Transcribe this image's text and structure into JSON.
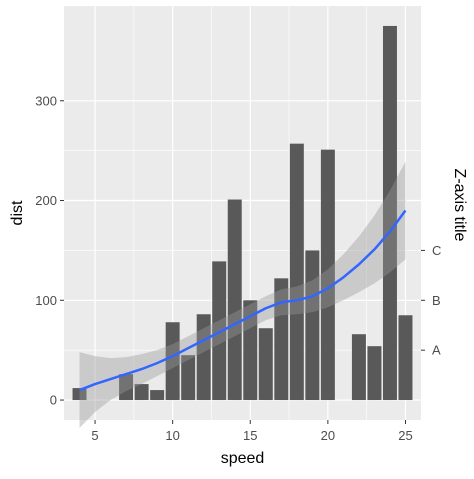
{
  "chart_data": {
    "type": "bar",
    "title": "",
    "xlabel": "speed",
    "ylabel": "dist",
    "zlabel": "Z-axis title",
    "xlim": [
      3,
      26
    ],
    "ylim": [
      -20,
      395
    ],
    "x_ticks": [
      5,
      10,
      15,
      20,
      25
    ],
    "y_ticks": [
      0,
      100,
      200,
      300
    ],
    "z_ticks": [
      {
        "label": "A",
        "value": 50
      },
      {
        "label": "B",
        "value": 100
      },
      {
        "label": "C",
        "value": 150
      }
    ],
    "grid": true,
    "bars": [
      {
        "x": 4,
        "y": 12
      },
      {
        "x": 7,
        "y": 26
      },
      {
        "x": 8,
        "y": 16
      },
      {
        "x": 9,
        "y": 10
      },
      {
        "x": 10,
        "y": 78
      },
      {
        "x": 11,
        "y": 45
      },
      {
        "x": 12,
        "y": 86
      },
      {
        "x": 13,
        "y": 139
      },
      {
        "x": 14,
        "y": 201
      },
      {
        "x": 15,
        "y": 100
      },
      {
        "x": 16,
        "y": 72
      },
      {
        "x": 17,
        "y": 122
      },
      {
        "x": 18,
        "y": 257
      },
      {
        "x": 19,
        "y": 150
      },
      {
        "x": 20,
        "y": 251
      },
      {
        "x": 22,
        "y": 66
      },
      {
        "x": 23,
        "y": 54
      },
      {
        "x": 24,
        "y": 375
      },
      {
        "x": 25,
        "y": 85
      }
    ],
    "smooth": {
      "x": [
        4,
        5,
        6,
        7,
        8,
        9,
        10,
        11,
        12,
        13,
        14,
        15,
        16,
        17,
        18,
        19,
        20,
        21,
        22,
        23,
        24,
        25
      ],
      "y": [
        10,
        16,
        21,
        26,
        31,
        37,
        44,
        52,
        60,
        68,
        76,
        84,
        92,
        98,
        100,
        104,
        112,
        123,
        136,
        151,
        169,
        190
      ],
      "lower": [
        -28,
        -12,
        0,
        9,
        16,
        24,
        32,
        40,
        48,
        56,
        64,
        72,
        80,
        85,
        86,
        88,
        93,
        100,
        108,
        117,
        128,
        141
      ],
      "upper": [
        48,
        44,
        42,
        43,
        46,
        50,
        56,
        64,
        72,
        80,
        88,
        96,
        104,
        111,
        114,
        120,
        131,
        146,
        164,
        185,
        210,
        239
      ]
    },
    "colors": {
      "bar": "#595959",
      "line": "#3366ff",
      "ribbon": "#999999",
      "panel": "#ebebeb",
      "grid": "#ffffff",
      "tick_text": "#4d4d4d",
      "axis_title": "#000000"
    }
  }
}
